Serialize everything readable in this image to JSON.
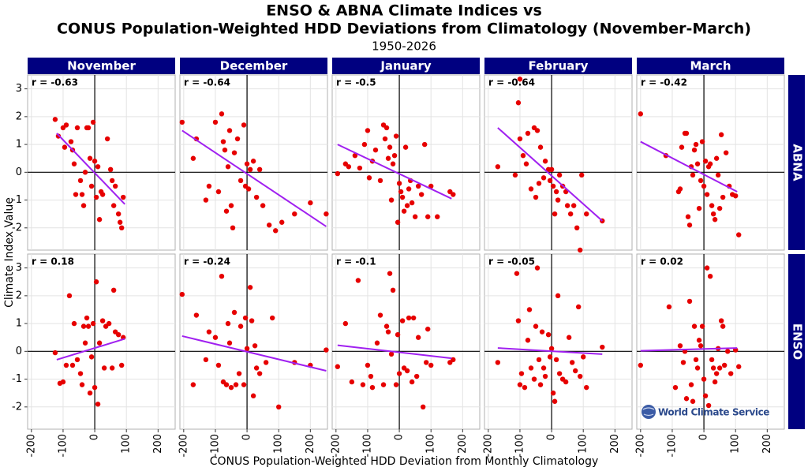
{
  "chart_data": {
    "type": "scatter",
    "title": [
      "ENSO & ABNA Climate Indices vs",
      "CONUS Population-Weighted HDD Deviations from Climatology (November-March)"
    ],
    "subtitle": "1950-2026",
    "x_label": "CONUS Population-Weighted HDD Deviation from Monthly Climatology",
    "y_label": "Climate Index Value",
    "watermark": "World Climate Service",
    "xlim": [
      -212,
      254
    ],
    "xticks": [
      -200,
      -100,
      0,
      100,
      200
    ],
    "ylim": [
      -2.8,
      3.5
    ],
    "yticks": [
      -2,
      -1,
      0,
      1,
      2,
      3
    ],
    "grid": true,
    "point_color": "#e60000",
    "fit_color": "#a020f0",
    "strip_color": "#000080",
    "columns": [
      "November",
      "December",
      "January",
      "February",
      "March"
    ],
    "rows": [
      {
        "name": "ABNA",
        "panels": [
          {
            "r_label": "r = -0.63",
            "x": [
              -125,
              -115,
              -100,
              -90,
              -75,
              -70,
              -65,
              -55,
              -45,
              -40,
              -35,
              -25,
              -20,
              -15,
              -10,
              -5,
              0,
              5,
              10,
              15,
              20,
              25,
              40,
              50,
              55,
              60,
              65,
              75,
              80,
              85,
              90,
              -95,
              -60,
              -30
            ],
            "y": [
              1.9,
              1.3,
              1.6,
              1.7,
              1.1,
              0.8,
              0.3,
              1.6,
              -0.3,
              -0.8,
              -1.2,
              1.6,
              1.6,
              0.5,
              -0.5,
              1.8,
              0.4,
              -0.9,
              0.2,
              -1.7,
              -0.7,
              -0.8,
              1.2,
              0.1,
              -0.3,
              -1.2,
              -0.5,
              -1.5,
              -1.8,
              -2.0,
              -0.9,
              0.9,
              -0.8,
              0.0
            ],
            "fit": {
              "x": [
                -120,
                95
              ],
              "y": [
                1.4,
                -1.15
              ]
            }
          },
          {
            "r_label": "r = -0.64",
            "x": [
              -205,
              -170,
              -160,
              -120,
              -100,
              -90,
              -80,
              -75,
              -70,
              -60,
              -55,
              -50,
              -45,
              -40,
              -30,
              -20,
              -10,
              -5,
              0,
              5,
              10,
              20,
              30,
              40,
              50,
              70,
              90,
              110,
              150,
              200,
              250,
              -130,
              -65
            ],
            "y": [
              1.8,
              0.5,
              1.2,
              -0.5,
              1.8,
              -0.7,
              2.1,
              1.1,
              0.8,
              0.2,
              1.5,
              -1.2,
              -2.0,
              0.7,
              1.2,
              -0.3,
              1.7,
              -0.5,
              0.3,
              -0.6,
              0.1,
              0.4,
              -0.9,
              0.1,
              -1.2,
              -1.9,
              -2.1,
              -1.8,
              -1.5,
              -1.1,
              -1.5,
              -1.0,
              -1.4
            ],
            "fit": {
              "x": [
                -205,
                250
              ],
              "y": [
                1.5,
                -1.95
              ]
            }
          },
          {
            "r_label": "r = -0.5",
            "x": [
              -195,
              -170,
              -160,
              -140,
              -125,
              -110,
              -100,
              -95,
              -85,
              -75,
              -60,
              -50,
              -45,
              -40,
              -35,
              -30,
              -25,
              -20,
              -15,
              -10,
              0,
              5,
              10,
              15,
              20,
              25,
              35,
              40,
              50,
              60,
              70,
              80,
              90,
              100,
              120,
              160,
              170,
              -5,
              30
            ],
            "y": [
              -0.05,
              0.3,
              0.2,
              0.6,
              0.15,
              1.0,
              1.5,
              -0.2,
              0.4,
              0.8,
              -0.3,
              1.7,
              1.2,
              1.6,
              0.5,
              0.9,
              -1.0,
              0.3,
              0.6,
              1.3,
              -0.4,
              -0.7,
              -0.9,
              -1.4,
              0.9,
              -1.2,
              -0.3,
              -1.1,
              -1.6,
              -0.5,
              -0.8,
              1.0,
              -1.6,
              -0.5,
              -1.6,
              -0.7,
              -0.8,
              -1.8,
              -0.6
            ],
            "fit": {
              "x": [
                -195,
                165
              ],
              "y": [
                1.0,
                -0.95
              ]
            }
          },
          {
            "r_label": "r = -0.64",
            "x": [
              -170,
              -115,
              -105,
              -100,
              -90,
              -80,
              -75,
              -65,
              -55,
              -50,
              -45,
              -40,
              -35,
              -25,
              -20,
              -10,
              -5,
              0,
              5,
              10,
              15,
              20,
              25,
              35,
              45,
              50,
              60,
              70,
              80,
              90,
              95,
              110,
              160,
              -100
            ],
            "y": [
              0.2,
              -0.1,
              2.5,
              1.2,
              0.6,
              0.3,
              1.4,
              -0.6,
              1.6,
              -0.9,
              1.5,
              -0.4,
              0.9,
              -0.2,
              0.4,
              0.1,
              -0.3,
              0.1,
              -0.5,
              -1.5,
              -0.7,
              -1.0,
              -0.1,
              -0.5,
              -0.7,
              -1.2,
              -1.5,
              -1.2,
              -2.0,
              -2.8,
              -0.1,
              -1.5,
              -1.75,
              3.35
            ],
            "fit": {
              "x": [
                -170,
                160
              ],
              "y": [
                1.6,
                -1.75
              ]
            }
          },
          {
            "r_label": "r = -0.42",
            "x": [
              -200,
              -120,
              -80,
              -75,
              -70,
              -60,
              -55,
              -45,
              -40,
              -35,
              -30,
              -25,
              -20,
              -15,
              -10,
              -5,
              0,
              5,
              10,
              15,
              20,
              25,
              30,
              35,
              40,
              45,
              55,
              60,
              70,
              80,
              90,
              100,
              110,
              -50,
              50
            ],
            "y": [
              2.1,
              0.6,
              -0.7,
              -0.6,
              0.9,
              1.4,
              1.4,
              -1.9,
              0.2,
              -0.1,
              0.8,
              1.0,
              0.3,
              -1.3,
              -0.3,
              1.1,
              -0.5,
              0.4,
              -0.8,
              0.2,
              0.3,
              -1.2,
              -1.5,
              -1.7,
              0.5,
              -0.1,
              1.35,
              -0.9,
              0.7,
              -0.5,
              -0.8,
              -0.85,
              -2.25,
              -1.6,
              -1.3
            ],
            "fit": {
              "x": [
                -200,
                105
              ],
              "y": [
                1.1,
                -0.7
              ]
            }
          }
        ]
      },
      {
        "name": "ENSO",
        "panels": [
          {
            "r_label": "r = 0.18",
            "x": [
              -125,
              -110,
              -100,
              -90,
              -80,
              -70,
              -65,
              -55,
              -45,
              -40,
              -35,
              -25,
              -20,
              -15,
              -10,
              -5,
              0,
              5,
              10,
              15,
              25,
              35,
              45,
              55,
              60,
              65,
              75,
              85,
              90,
              -30,
              30
            ],
            "y": [
              -0.05,
              -1.15,
              -1.1,
              -0.5,
              2.0,
              -0.5,
              1.0,
              -0.3,
              -0.8,
              -1.2,
              0.9,
              1.2,
              0.9,
              -1.5,
              -0.2,
              1.0,
              -1.3,
              2.5,
              -1.9,
              0.3,
              1.1,
              0.9,
              1.0,
              -0.6,
              2.2,
              0.7,
              0.6,
              -0.5,
              0.5,
              0.3,
              -0.6
            ],
            "fit": {
              "x": [
                -120,
                95
              ],
              "y": [
                -0.3,
                0.45
              ]
            }
          },
          {
            "r_label": "r = -0.24",
            "x": [
              -205,
              -170,
              -160,
              -120,
              -100,
              -90,
              -80,
              -75,
              -65,
              -60,
              -55,
              -50,
              -40,
              -35,
              -25,
              -20,
              -10,
              -5,
              0,
              10,
              15,
              20,
              25,
              30,
              40,
              60,
              80,
              100,
              150,
              200,
              250,
              -130
            ],
            "y": [
              2.05,
              -1.2,
              1.3,
              0.7,
              0.5,
              -0.5,
              2.7,
              -1.1,
              -1.2,
              1.0,
              0.3,
              -1.3,
              1.4,
              -1.2,
              -0.8,
              0.9,
              -1.2,
              1.2,
              0.1,
              2.3,
              1.1,
              -1.6,
              0.2,
              -0.6,
              -0.8,
              -0.4,
              1.2,
              -2.0,
              -0.4,
              -0.5,
              0.05,
              -0.3
            ],
            "fit": {
              "x": [
                -205,
                250
              ],
              "y": [
                0.55,
                -0.7
              ]
            }
          },
          {
            "r_label": "r = -0.1",
            "x": [
              -195,
              -170,
              -150,
              -130,
              -115,
              -100,
              -85,
              -70,
              -60,
              -50,
              -40,
              -35,
              -30,
              -25,
              -20,
              -10,
              -5,
              0,
              10,
              15,
              25,
              30,
              40,
              45,
              55,
              60,
              75,
              85,
              90,
              100,
              160,
              170,
              -90
            ],
            "y": [
              -0.55,
              1.0,
              -1.1,
              2.55,
              -1.2,
              -0.5,
              -1.3,
              0.3,
              1.3,
              -1.2,
              0.9,
              0.7,
              2.8,
              -0.1,
              2.2,
              -1.2,
              0.6,
              -0.8,
              1.1,
              -0.6,
              -0.7,
              1.2,
              -1.1,
              1.2,
              -0.9,
              0.5,
              -2.0,
              -0.4,
              0.8,
              -0.5,
              -0.4,
              -0.3,
              -0.9
            ],
            "fit": {
              "x": [
                -195,
                165
              ],
              "y": [
                0.22,
                -0.25
              ]
            }
          },
          {
            "r_label": "r = -0.05",
            "x": [
              -170,
              -110,
              -105,
              -100,
              -95,
              -85,
              -75,
              -70,
              -65,
              -55,
              -50,
              -45,
              -40,
              -30,
              -25,
              -20,
              -10,
              -5,
              0,
              5,
              10,
              15,
              25,
              35,
              45,
              55,
              65,
              75,
              85,
              90,
              100,
              110,
              160,
              -35,
              20
            ],
            "y": [
              -0.4,
              2.8,
              1.1,
              -1.2,
              -0.8,
              -1.3,
              0.4,
              1.5,
              -0.6,
              -1.0,
              0.9,
              3.0,
              -0.3,
              0.7,
              -0.6,
              -0.9,
              0.6,
              -0.2,
              0.1,
              -1.5,
              -1.8,
              -0.3,
              -0.8,
              -1.0,
              -1.1,
              0.5,
              -0.4,
              -0.7,
              1.6,
              -0.9,
              -0.2,
              -1.3,
              0.15,
              -1.2,
              2.0
            ],
            "fit": {
              "x": [
                -170,
                160
              ],
              "y": [
                0.12,
                -0.1
              ]
            }
          },
          {
            "r_label": "r = 0.02",
            "x": [
              -200,
              -110,
              -90,
              -75,
              -65,
              -55,
              -45,
              -35,
              -30,
              -25,
              -20,
              -15,
              -10,
              -5,
              0,
              5,
              10,
              15,
              20,
              25,
              30,
              35,
              40,
              45,
              50,
              55,
              60,
              65,
              75,
              85,
              100,
              110,
              -60,
              -40
            ],
            "y": [
              -0.5,
              1.6,
              -1.3,
              0.2,
              -0.4,
              -1.7,
              1.8,
              -1.8,
              0.9,
              -0.3,
              -0.6,
              0.4,
              0.2,
              0.9,
              -1.0,
              -1.6,
              3.0,
              -1.95,
              2.7,
              -0.3,
              -0.6,
              -1.1,
              -0.8,
              0.1,
              -0.6,
              1.1,
              0.9,
              -0.5,
              0.0,
              -0.8,
              0.05,
              -0.55,
              0.0,
              -1.2
            ],
            "fit": {
              "x": [
                -200,
                105
              ],
              "y": [
                0.02,
                0.12
              ]
            }
          }
        ]
      }
    ]
  }
}
